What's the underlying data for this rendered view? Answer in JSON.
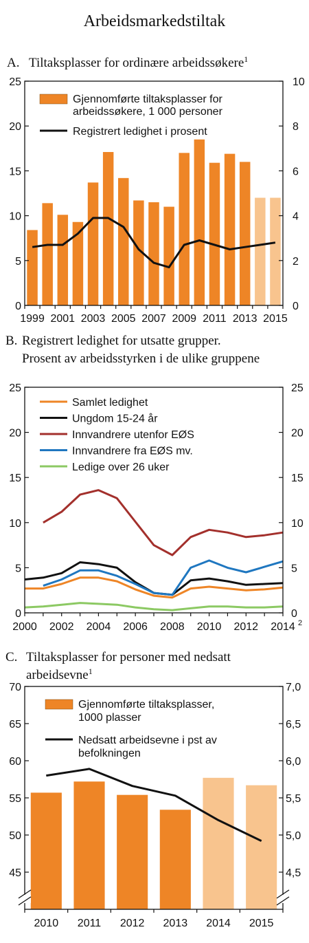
{
  "figure_title": "Arbeidsmarkedstiltak",
  "chart_data": [
    {
      "type": "bar",
      "panel_letter": "A.",
      "title_lines": [
        "Tiltaksplasser for ordinære arbeidssøkere"
      ],
      "title_sup": "1",
      "categories": [
        "1999",
        "2000",
        "2001",
        "2002",
        "2003",
        "2004",
        "2005",
        "2006",
        "2007",
        "2008",
        "2009",
        "2010",
        "2011",
        "2012",
        "2013",
        "2014",
        "2015"
      ],
      "xtick_labels": [
        "1999",
        "2001",
        "2003",
        "2005",
        "2007",
        "2009",
        "2011",
        "2013",
        "2015"
      ],
      "xtick_categories": [
        "1999",
        "2001",
        "2003",
        "2005",
        "2007",
        "2009",
        "2011",
        "2013",
        "2015"
      ],
      "ylim_left": [
        0,
        25
      ],
      "yticks_left": [
        "0",
        "5",
        "10",
        "15",
        "20",
        "25"
      ],
      "ylim_right": [
        0,
        10
      ],
      "yticks_right": [
        "0",
        "2",
        "4",
        "6",
        "8",
        "10"
      ],
      "colors": {
        "bar": "#EE8526",
        "bar_projection": "#F8C48E",
        "line": "#111111"
      },
      "series": [
        {
          "name_lines": [
            "Gjennomførte tiltaksplasser for",
            "arbeidssøkere, 1 000 personer"
          ],
          "kind": "bar",
          "axis": "left",
          "values": [
            8.4,
            11.4,
            10.1,
            9.3,
            13.7,
            17.1,
            14.2,
            11.7,
            11.5,
            11.0,
            17.0,
            18.5,
            15.9,
            16.9,
            16.0,
            12.0,
            12.0
          ],
          "projection_from_index": 15
        },
        {
          "name_lines": [
            "Registrert ledighet i prosent"
          ],
          "kind": "line",
          "axis": "right",
          "values": [
            2.6,
            2.7,
            2.7,
            3.2,
            3.9,
            3.9,
            3.5,
            2.5,
            1.9,
            1.7,
            2.7,
            2.9,
            2.7,
            2.5,
            2.6,
            2.7,
            2.8
          ]
        }
      ]
    },
    {
      "type": "line",
      "panel_letter": "B.",
      "title_lines": [
        "Registrert ledighet for utsatte grupper.",
        "Prosent av arbeidsstyrken i de ulike gruppene"
      ],
      "x": [
        2000,
        2001,
        2002,
        2003,
        2004,
        2005,
        2006,
        2007,
        2008,
        2009,
        2010,
        2011,
        2012,
        2013,
        2014
      ],
      "xticks": [
        2000,
        2002,
        2004,
        2006,
        2008,
        2010,
        2012,
        2014
      ],
      "xtick_labels": [
        "2000",
        "2002",
        "2004",
        "2006",
        "2008",
        "2010",
        "2012",
        "2014"
      ],
      "x_last_sup": "2",
      "ylim": [
        0,
        25
      ],
      "yticks": [
        "0",
        "5",
        "10",
        "15",
        "20",
        "25"
      ],
      "series": [
        {
          "name": "Samlet ledighet",
          "color": "#EE8526",
          "values": [
            2.7,
            2.7,
            3.2,
            3.9,
            3.9,
            3.5,
            2.6,
            1.9,
            1.7,
            2.7,
            2.9,
            2.7,
            2.5,
            2.6,
            2.8
          ]
        },
        {
          "name": "Ungdom 15-24 år",
          "color": "#111111",
          "values": [
            3.7,
            3.9,
            4.4,
            5.6,
            5.4,
            5.0,
            3.4,
            2.2,
            2.0,
            3.6,
            3.8,
            3.5,
            3.1,
            3.2,
            3.3
          ]
        },
        {
          "name": "Innvandrere utenfor EØS",
          "color": "#A3302C",
          "values": [
            null,
            10.0,
            11.2,
            13.1,
            13.6,
            12.7,
            10.1,
            7.5,
            6.4,
            8.4,
            9.2,
            8.9,
            8.4,
            8.6,
            8.9
          ]
        },
        {
          "name": "Innvandrere fra EØS mv.",
          "color": "#1F77C0",
          "values": [
            null,
            3.0,
            3.7,
            4.7,
            4.7,
            4.1,
            3.2,
            2.2,
            2.0,
            5.0,
            5.8,
            5.0,
            4.5,
            5.1,
            5.7
          ]
        },
        {
          "name": "Ledige over 26 uker",
          "color": "#8CC963",
          "values": [
            0.6,
            0.7,
            0.9,
            1.1,
            1.0,
            0.9,
            0.6,
            0.4,
            0.3,
            0.5,
            0.7,
            0.7,
            0.6,
            0.6,
            0.7
          ]
        }
      ]
    },
    {
      "type": "bar",
      "panel_letter": "C.",
      "title_lines": [
        "Tiltaksplasser for personer med nedsatt",
        "arbeidsevne"
      ],
      "title_sup": "1",
      "categories": [
        "2010",
        "2011",
        "2012",
        "2013",
        "2014",
        "2015"
      ],
      "ylim_left": [
        40,
        70
      ],
      "yticks_left": [
        "45",
        "50",
        "55",
        "60",
        "65",
        "70"
      ],
      "ylim_right": [
        4.0,
        7.0
      ],
      "yticks_right": [
        "4,5",
        "5,0",
        "5,5",
        "6,0",
        "6,5",
        "7,0"
      ],
      "axis_break": true,
      "colors": {
        "bar": "#EE8526",
        "bar_projection": "#F8C48E",
        "line": "#111111"
      },
      "series": [
        {
          "name_lines": [
            "Gjennomførte tiltaksplasser,",
            "1000 plasser"
          ],
          "kind": "bar",
          "axis": "left",
          "values": [
            55.7,
            57.2,
            55.4,
            53.4,
            57.7,
            56.7
          ],
          "projection_from_index": 4
        },
        {
          "name_lines": [
            "Nedsatt arbeidsevne i pst av",
            "befolkningen"
          ],
          "kind": "line",
          "axis": "right",
          "values": [
            5.8,
            5.89,
            5.66,
            5.53,
            5.2,
            4.92
          ]
        }
      ]
    }
  ]
}
